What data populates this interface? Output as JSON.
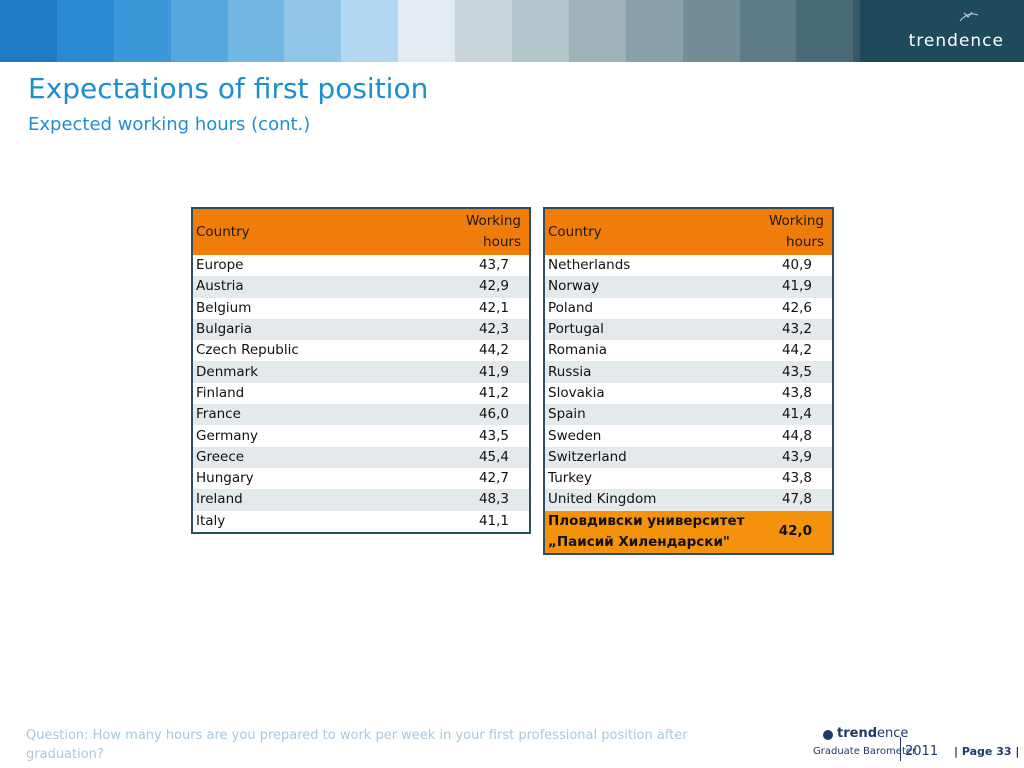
{
  "header": {
    "stripe_colors": [
      "#1e7bc4",
      "#2a89cf",
      "#3b97d7",
      "#55a8de",
      "#70b7e3",
      "#8fc6e8",
      "#b1d8f0",
      "#e3ecf0",
      "#c8d6dc",
      "#b4c4cb",
      "#9fb2ba",
      "#8aa0a9",
      "#748e98",
      "#5e7b87",
      "#4a6a77",
      "#375867",
      "#2a4d5e",
      "#1e4a5c"
    ],
    "brand": "trendence"
  },
  "title": "Expectations of first position",
  "subtitle": "Expected working hours (cont.)",
  "table_left": {
    "col_country": "Country",
    "col_hours_1": "Working",
    "col_hours_2": "hours",
    "rows": [
      {
        "country": "Europe",
        "hours": "43,7"
      },
      {
        "country": "Austria",
        "hours": "42,9"
      },
      {
        "country": "Belgium",
        "hours": "42,1"
      },
      {
        "country": "Bulgaria",
        "hours": "42,3"
      },
      {
        "country": "Czech Republic",
        "hours": "44,2"
      },
      {
        "country": "Denmark",
        "hours": "41,9"
      },
      {
        "country": "Finland",
        "hours": "41,2"
      },
      {
        "country": "France",
        "hours": "46,0"
      },
      {
        "country": "Germany",
        "hours": "43,5"
      },
      {
        "country": "Greece",
        "hours": "45,4"
      },
      {
        "country": "Hungary",
        "hours": "42,7"
      },
      {
        "country": "Ireland",
        "hours": "48,3"
      },
      {
        "country": "Italy",
        "hours": "41,1"
      }
    ]
  },
  "table_right": {
    "col_country": "Country",
    "col_hours_1": "Working",
    "col_hours_2": "hours",
    "rows": [
      {
        "country": "Netherlands",
        "hours": "40,9"
      },
      {
        "country": "Norway",
        "hours": "41,9"
      },
      {
        "country": "Poland",
        "hours": "42,6"
      },
      {
        "country": "Portugal",
        "hours": "43,2"
      },
      {
        "country": "Romania",
        "hours": "44,2"
      },
      {
        "country": "Russia",
        "hours": "43,5"
      },
      {
        "country": "Slovakia",
        "hours": "43,8"
      },
      {
        "country": "Spain",
        "hours": "41,4"
      },
      {
        "country": "Sweden",
        "hours": "44,8"
      },
      {
        "country": "Switzerland",
        "hours": "43,9"
      },
      {
        "country": "Turkey",
        "hours": "43,8"
      },
      {
        "country": "United Kingdom",
        "hours": "47,8"
      }
    ],
    "highlight": {
      "country_line1": "Пловдивски университет",
      "country_line2": "„Паисий Хилендарски\"",
      "hours": "42,0"
    }
  },
  "footer": {
    "question": "Question: How many hours are you prepared to work per week in your first professional position after graduation?",
    "logo_brand_bold": "trend",
    "logo_brand_rest": "ence",
    "logo_sub": "Graduate Barometer",
    "year": "2011",
    "page": "| Page 33 |"
  }
}
